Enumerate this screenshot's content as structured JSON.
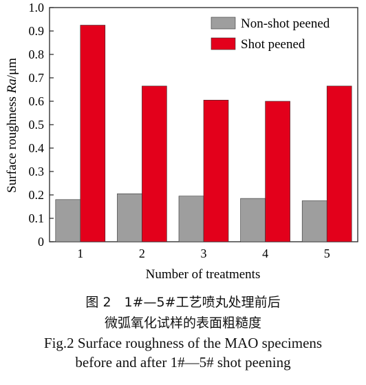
{
  "chart_data": {
    "type": "bar",
    "categories": [
      "1",
      "2",
      "3",
      "4",
      "5"
    ],
    "series": [
      {
        "name": "Non-shot peened",
        "values": [
          0.18,
          0.205,
          0.195,
          0.185,
          0.175
        ],
        "color": "#9e9e9e"
      },
      {
        "name": "Shot peened",
        "values": [
          0.925,
          0.665,
          0.605,
          0.6,
          0.665
        ],
        "color": "#e3001b"
      }
    ],
    "yticks": [
      "0",
      "0.1",
      "0.2",
      "0.3",
      "0.4",
      "0.5",
      "0.6",
      "0.7",
      "0.8",
      "0.9",
      "1.0"
    ],
    "ylim": [
      0,
      1.0
    ],
    "ylabel": "Surface roughness Ra/μm",
    "ylabel_parts": {
      "pre": "Surface roughness ",
      "italic": "Ra",
      "post": "/μm"
    },
    "xlabel": "Number of treatments",
    "legend": "top-right",
    "grid": false
  },
  "caption": {
    "zh_line1": "图 2　1#—5#工艺喷丸处理前后",
    "zh_line2": "微弧氧化试样的表面粗糙度",
    "en_line1": "Fig.2 Surface roughness of the MAO specimens",
    "en_line2": "before and after 1#—5# shot peening"
  }
}
